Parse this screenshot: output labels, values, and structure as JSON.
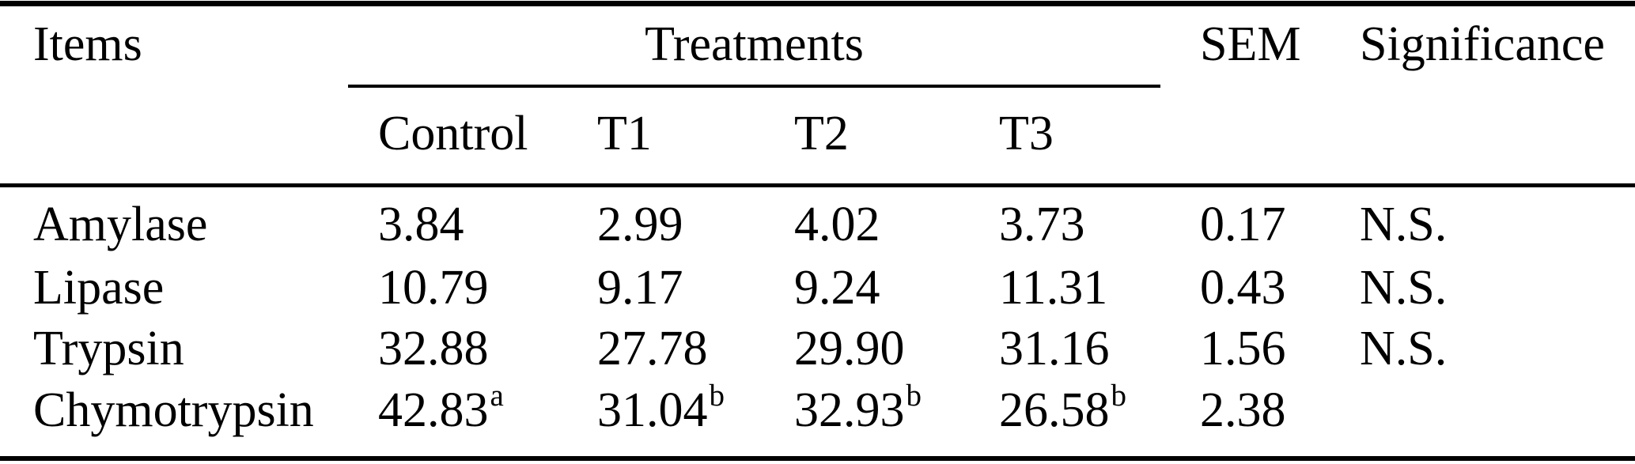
{
  "table": {
    "header": {
      "items": "Items",
      "treatments": "Treatments",
      "treatment_columns": [
        "Control",
        "T1",
        "T2",
        "T3"
      ],
      "sem": "SEM",
      "significance": "Significance"
    },
    "rows": [
      {
        "item": "Amylase",
        "values": [
          {
            "v": "3.84",
            "sup": ""
          },
          {
            "v": "2.99",
            "sup": ""
          },
          {
            "v": "4.02",
            "sup": ""
          },
          {
            "v": "3.73",
            "sup": ""
          }
        ],
        "sem": "0.17",
        "significance": "N.S."
      },
      {
        "item": "Lipase",
        "values": [
          {
            "v": "10.79",
            "sup": ""
          },
          {
            "v": "9.17",
            "sup": ""
          },
          {
            "v": "9.24",
            "sup": ""
          },
          {
            "v": "11.31",
            "sup": ""
          }
        ],
        "sem": "0.43",
        "significance": "N.S."
      },
      {
        "item": "Trypsin",
        "values": [
          {
            "v": "32.88",
            "sup": ""
          },
          {
            "v": "27.78",
            "sup": ""
          },
          {
            "v": "29.90",
            "sup": ""
          },
          {
            "v": "31.16",
            "sup": ""
          }
        ],
        "sem": "1.56",
        "significance": "N.S."
      },
      {
        "item": "Chymotrypsin",
        "values": [
          {
            "v": "42.83",
            "sup": "a"
          },
          {
            "v": "31.04",
            "sup": "b"
          },
          {
            "v": "32.93",
            "sup": "b"
          },
          {
            "v": "26.58",
            "sup": "b"
          }
        ],
        "sem": "2.38",
        "significance": ""
      }
    ],
    "colors": {
      "background": "#ffffff",
      "text": "#000000",
      "rule": "#000000"
    }
  }
}
